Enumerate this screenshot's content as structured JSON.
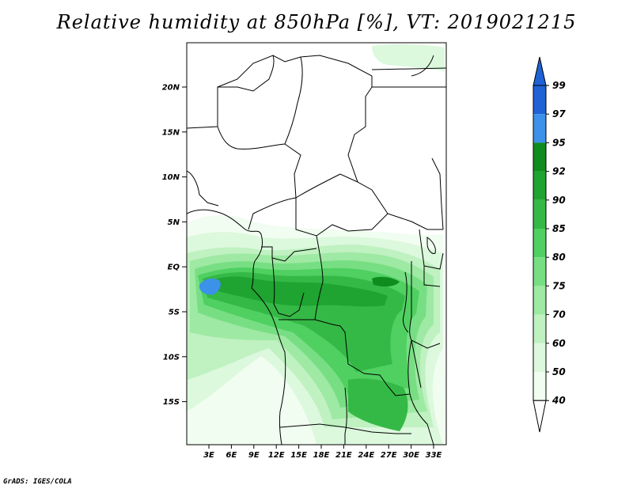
{
  "title": "Relative humidity at 850hPa [%], VT: 2019021215",
  "credit": "GrADS: IGES/COLA",
  "map": {
    "lat_labels": [
      "20N",
      "15N",
      "10N",
      "5N",
      "EQ",
      "5S",
      "10S",
      "15S"
    ],
    "lon_labels": [
      "3E",
      "6E",
      "9E",
      "12E",
      "15E",
      "18E",
      "21E",
      "24E",
      "27E",
      "30E",
      "33E"
    ]
  },
  "colorbar": {
    "levels": [
      "99",
      "97",
      "95",
      "92",
      "90",
      "85",
      "80",
      "75",
      "70",
      "60",
      "50",
      "40"
    ],
    "colors": [
      "#1e62d6",
      "#1e62d6",
      "#3c91e8",
      "#0f8c1e",
      "#1fa331",
      "#35b946",
      "#4fd061",
      "#78de84",
      "#9ee9a3",
      "#bff1c1",
      "#dcf8dd",
      "#f0fdf0",
      "#ffffff"
    ]
  }
}
